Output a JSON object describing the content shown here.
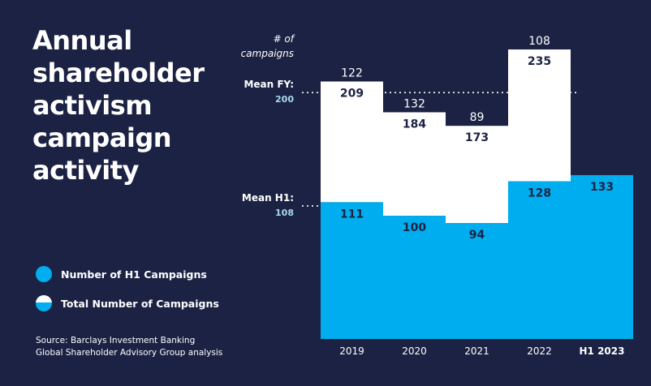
{
  "title_lines": [
    "Annual",
    "shareholder",
    "activism",
    "campaign",
    "activity"
  ],
  "legend": [
    {
      "label": "Number of H1 Campaigns",
      "icon": "filled-circle-icon"
    },
    {
      "label": "Total Number of Campaigns",
      "icon": "half-filled-circle-icon"
    }
  ],
  "source_lines": [
    "Source: Barclays Investment Banking",
    "Global Shareholder Advisory Group analysis"
  ],
  "colors": {
    "background": "#1c2244",
    "h1": "#00aeef",
    "total": "#ffffff",
    "mean_label": "#a8d8f0"
  },
  "chart_data": {
    "type": "bar",
    "stacked": true,
    "title": "Annual shareholder activism campaign activity",
    "ylabel": "# of campaigns",
    "ylabel_lines": [
      "# of",
      "campaigns"
    ],
    "categories": [
      "2019",
      "2020",
      "2021",
      "2022",
      "H1 2023"
    ],
    "series": [
      {
        "name": "Number of H1 Campaigns",
        "values": [
          111,
          100,
          94,
          128,
          133
        ]
      },
      {
        "name": "Total Number of Campaigns",
        "values": [
          209,
          184,
          173,
          235,
          null
        ]
      }
    ],
    "h2_values": [
      122,
      132,
      89,
      108,
      null
    ],
    "reference_lines": [
      {
        "label": "Mean FY:",
        "value": 200
      },
      {
        "label": "Mean H1:",
        "value": 108
      }
    ],
    "ylim": [
      0,
      235
    ],
    "grid": false,
    "legend_position": "bottom-left"
  }
}
